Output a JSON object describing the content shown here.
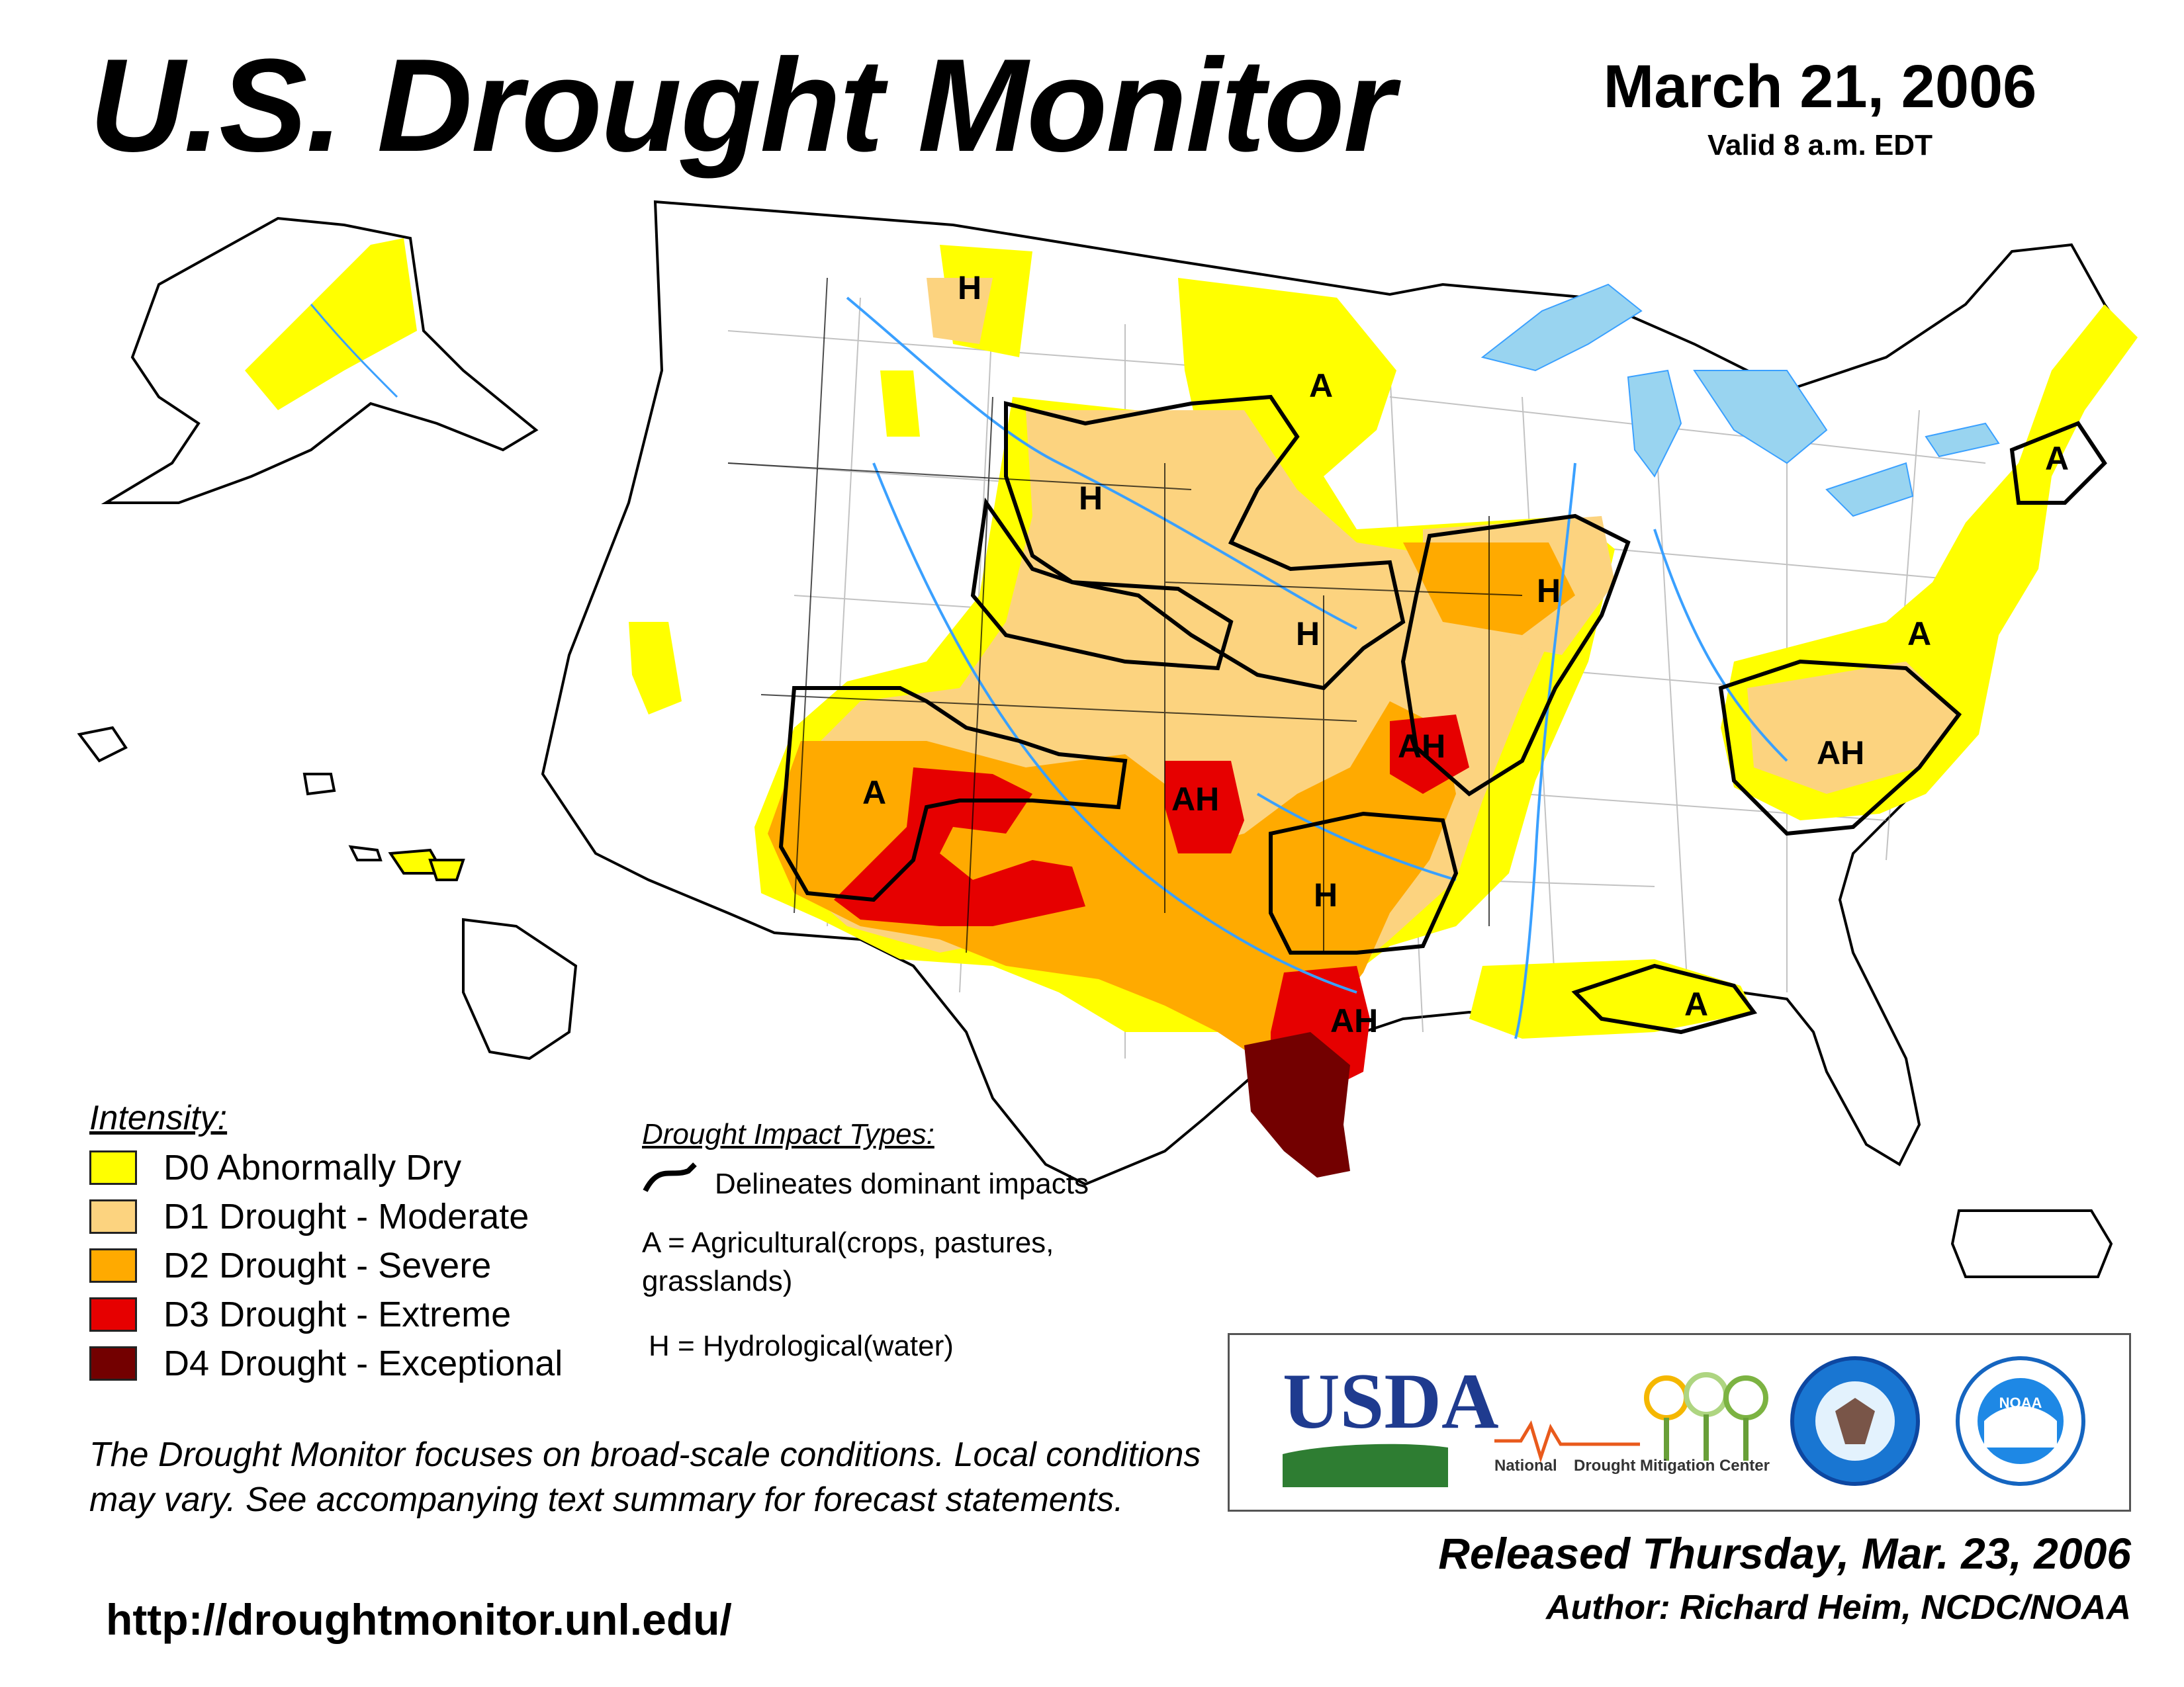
{
  "header": {
    "title": "U.S. Drought Monitor",
    "date": "March 21, 2006",
    "valid": "Valid 8 a.m. EDT"
  },
  "legend": {
    "heading": "Intensity:",
    "items": [
      {
        "label": "D0 Abnormally Dry",
        "color": "#ffff00"
      },
      {
        "label": "D1 Drought - Moderate",
        "color": "#fcd37f"
      },
      {
        "label": "D2 Drought - Severe",
        "color": "#ffaa00"
      },
      {
        "label": "D3 Drought - Extreme",
        "color": "#e60000"
      },
      {
        "label": "D4 Drought - Exceptional",
        "color": "#730000"
      }
    ]
  },
  "impacts": {
    "heading": "Drought Impact Types:",
    "line": "Delineates dominant impacts",
    "a": "A = Agricultural(crops, pastures, grasslands)",
    "h": "H = Hydrological(water)"
  },
  "map_labels": [
    {
      "text": "H"
    },
    {
      "text": "A"
    },
    {
      "text": "H"
    },
    {
      "text": "H"
    },
    {
      "text": "H"
    },
    {
      "text": "A"
    },
    {
      "text": "A"
    },
    {
      "text": "A"
    },
    {
      "text": "AH"
    },
    {
      "text": "AH"
    },
    {
      "text": "AH"
    },
    {
      "text": "H"
    },
    {
      "text": "AH"
    },
    {
      "text": "A"
    }
  ],
  "note": "The Drought Monitor focuses on broad-scale conditions. Local conditions may vary. See accompanying text summary for forecast statements.",
  "url": "http://droughtmonitor.unl.edu/",
  "logos": {
    "usda": "USDA",
    "ndmc_national": "National",
    "ndmc_center": "Drought Mitigation Center",
    "noaa": "NOAA"
  },
  "footer": {
    "released": "Released Thursday, Mar. 23, 2006",
    "author": "Author: Richard Heim, NCDC/NOAA"
  },
  "colors": {
    "water": "#99d4f0",
    "river": "#3aa0ff",
    "state_border": "#000000",
    "county_border": "#9a9a9a"
  }
}
